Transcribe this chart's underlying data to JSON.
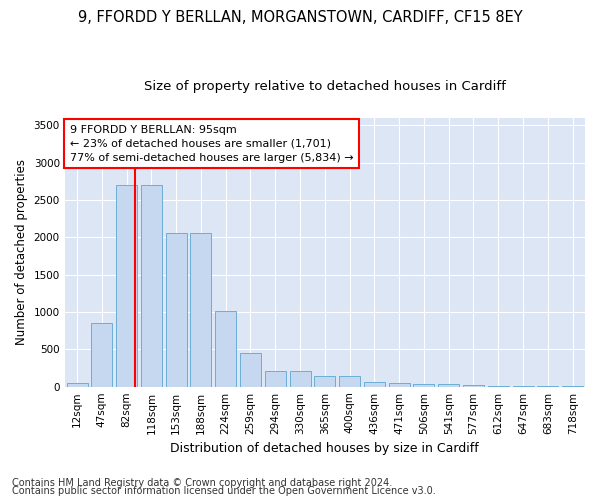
{
  "title1": "9, FFORDD Y BERLLAN, MORGANSTOWN, CARDIFF, CF15 8EY",
  "title2": "Size of property relative to detached houses in Cardiff",
  "xlabel": "Distribution of detached houses by size in Cardiff",
  "ylabel": "Number of detached properties",
  "categories": [
    "12sqm",
    "47sqm",
    "82sqm",
    "118sqm",
    "153sqm",
    "188sqm",
    "224sqm",
    "259sqm",
    "294sqm",
    "330sqm",
    "365sqm",
    "400sqm",
    "436sqm",
    "471sqm",
    "506sqm",
    "541sqm",
    "577sqm",
    "612sqm",
    "647sqm",
    "683sqm",
    "718sqm"
  ],
  "values": [
    55,
    850,
    2700,
    2700,
    2060,
    2060,
    1010,
    450,
    210,
    210,
    140,
    140,
    65,
    55,
    30,
    30,
    20,
    15,
    15,
    15,
    12
  ],
  "bar_color": "#c5d8f0",
  "bar_edge_color": "#6baed6",
  "red_line_x": 2.35,
  "annotation_title": "9 FFORDD Y BERLLAN: 95sqm",
  "annotation_line1": "← 23% of detached houses are smaller (1,701)",
  "annotation_line2": "77% of semi-detached houses are larger (5,834) →",
  "ylim": [
    0,
    3600
  ],
  "yticks": [
    0,
    500,
    1000,
    1500,
    2000,
    2500,
    3000,
    3500
  ],
  "footer1": "Contains HM Land Registry data © Crown copyright and database right 2024.",
  "footer2": "Contains public sector information licensed under the Open Government Licence v3.0.",
  "bg_color": "#ffffff",
  "plot_bg_color": "#dce6f5",
  "grid_color": "#ffffff",
  "title1_fontsize": 10.5,
  "title2_fontsize": 9.5,
  "xlabel_fontsize": 9,
  "ylabel_fontsize": 8.5,
  "tick_fontsize": 7.5,
  "annotation_fontsize": 8,
  "footer_fontsize": 7
}
